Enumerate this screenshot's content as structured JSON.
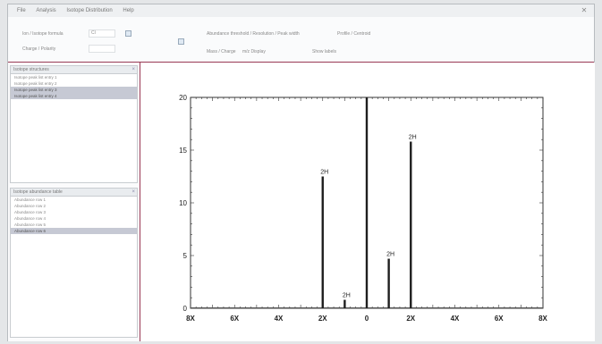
{
  "window": {
    "menu": [
      "File",
      "Analysis",
      "Isotope Distribution",
      "Help"
    ],
    "close_symbol": "✕"
  },
  "toolbar": {
    "formula_label": "Ion / Isotope formula",
    "formula_value": "Cl",
    "charge_label": "Charge / Polarity",
    "threshold_label": "Abundance threshold / Resolution / Peak width",
    "output_label": "Profile / Centroid",
    "option1_label": "Mass / Charge",
    "option2_label": "m/z Display",
    "option3_label": "Show labels"
  },
  "left_panel_top": {
    "title": "Isotope structures",
    "close_symbol": "×",
    "rows": [
      {
        "label": "Isotope peak list entry 1",
        "selected": false
      },
      {
        "label": "Isotope peak list entry 2",
        "selected": false
      },
      {
        "label": "Isotope peak list entry 3",
        "selected": true
      },
      {
        "label": "Isotope peak list entry 4",
        "selected": true
      }
    ]
  },
  "left_panel_bottom": {
    "title": "Isotope abundance table",
    "close_symbol": "×",
    "rows": [
      {
        "label": "Abundance row 1",
        "selected": false
      },
      {
        "label": "Abundance row 2",
        "selected": false
      },
      {
        "label": "Abundance row 3",
        "selected": false
      },
      {
        "label": "Abundance row 4",
        "selected": false
      },
      {
        "label": "Abundance row 5",
        "selected": false
      },
      {
        "label": "Abundance row 6",
        "selected": true
      }
    ]
  },
  "chart_data": {
    "type": "bar",
    "xlim": [
      -8,
      8
    ],
    "ylim": [
      0,
      20
    ],
    "x_ticks": [
      "6X",
      "4X",
      "2X",
      "0",
      "2X",
      "4X",
      "6X"
    ],
    "x_tick_values": [
      -6,
      -4,
      -2,
      0,
      2,
      4,
      6
    ],
    "x_edge_labels": [
      "8X",
      "8X"
    ],
    "y_ticks": [
      0,
      5,
      10,
      15,
      20
    ],
    "grid": false,
    "peaks": [
      {
        "x": -2.0,
        "y": 12.5,
        "label": "2H"
      },
      {
        "x": -1.0,
        "y": 0.8,
        "label": "2H"
      },
      {
        "x": 0.0,
        "y": 20.0,
        "label": ""
      },
      {
        "x": 1.0,
        "y": 4.7,
        "label": "2H"
      },
      {
        "x": 2.0,
        "y": 15.8,
        "label": "2H"
      }
    ],
    "bar_color": "#1e1e1e"
  }
}
